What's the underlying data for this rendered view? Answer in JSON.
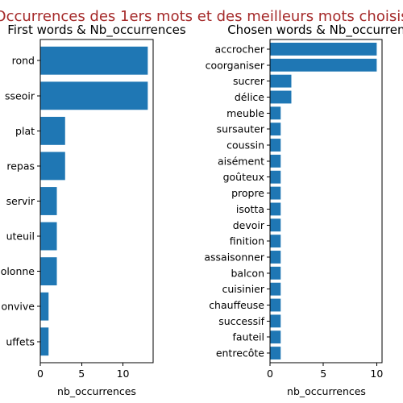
{
  "figure": {
    "suptitle": "Occurrences des 1ers mots et des meilleurs mots choisis",
    "bar_color": "#1f77b4",
    "title_color": "#a52a2a"
  },
  "chart_data": [
    {
      "type": "bar",
      "orientation": "horizontal",
      "title": "First words & Nb_occurrences",
      "xlabel": "nb_occurrences",
      "ylabel": "",
      "xlim": [
        0,
        13.65
      ],
      "xticks": [
        0,
        5,
        10
      ],
      "categories": [
        "rond",
        "asseoir",
        "plat",
        "repas",
        "servir",
        "fauteuil",
        "colonne",
        "convive",
        "buffets"
      ],
      "category_labels": [
        "rond",
        "sseoir",
        "plat",
        "repas",
        "servir",
        "uteuil",
        "olonne",
        "onvive",
        "uffets"
      ],
      "values": [
        13,
        13,
        3,
        3,
        2,
        2,
        2,
        1,
        1
      ]
    },
    {
      "type": "bar",
      "orientation": "horizontal",
      "title": "Chosen words & Nb_occurrences",
      "xlabel": "nb_occurrences",
      "ylabel": "",
      "xlim": [
        0,
        10.5
      ],
      "xticks": [
        0,
        5,
        10
      ],
      "categories": [
        "accrocher",
        "coorganiser",
        "sucrer",
        "délice",
        "meuble",
        "sursauter",
        "coussin",
        "aisément",
        "goûteux",
        "propre",
        "isotta",
        "devoir",
        "finition",
        "assaisonner",
        "balcon",
        "cuisinier",
        "chauffeuse",
        "successif",
        "fauteil",
        "entrecôte"
      ],
      "values": [
        10,
        10,
        2,
        2,
        1,
        1,
        1,
        1,
        1,
        1,
        1,
        1,
        1,
        1,
        1,
        1,
        1,
        1,
        1,
        1
      ]
    }
  ]
}
